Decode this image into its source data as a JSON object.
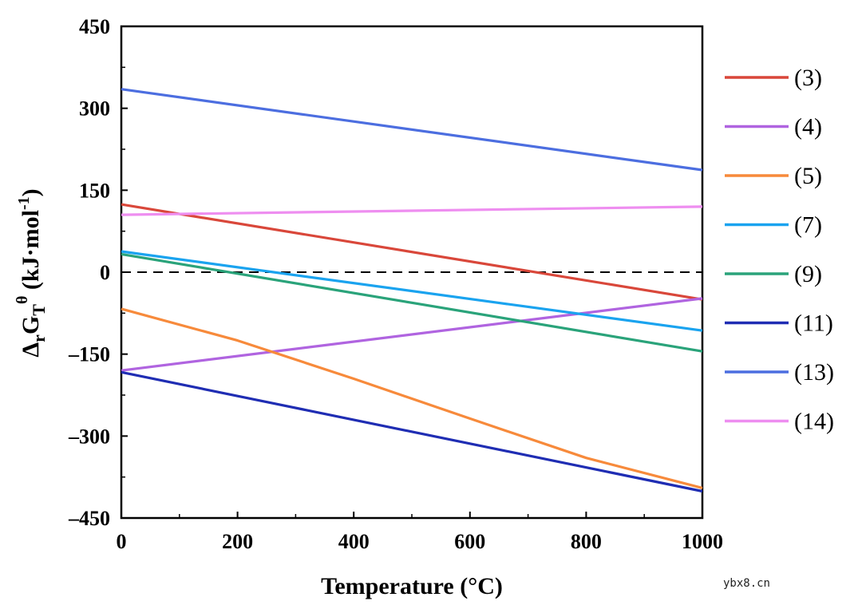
{
  "chart_data": {
    "type": "line",
    "title": "",
    "xlabel": "Temperature (°C)",
    "ylabel_parts": {
      "delta": "Δ",
      "r": "r",
      "G": "G",
      "T": "T",
      "theta": "θ",
      "units": " (kJ·mol",
      "exp": "-1",
      "close": ")"
    },
    "xlim": [
      0,
      1000
    ],
    "ylim": [
      -450,
      450
    ],
    "xticks": [
      0,
      200,
      400,
      600,
      800,
      1000
    ],
    "yticks": [
      450,
      300,
      150,
      0,
      -150,
      -300,
      -450
    ],
    "ytick_labels": [
      "450",
      "300",
      "150",
      "0",
      "–150",
      "–300",
      "–450"
    ],
    "xtick_labels": [
      "0",
      "200",
      "400",
      "600",
      "800",
      "1000"
    ],
    "reference_line": {
      "y": 0,
      "style": "dashed"
    },
    "legend_position": "right",
    "series": [
      {
        "name": "(3)",
        "color": "#d9473a",
        "x": [
          0,
          1000
        ],
        "y": [
          124,
          -50
        ]
      },
      {
        "name": "(4)",
        "color": "#b064e0",
        "x": [
          0,
          1000
        ],
        "y": [
          -180,
          -48
        ]
      },
      {
        "name": "(5)",
        "color": "#f78a3b",
        "x": [
          0,
          200,
          400,
          600,
          800,
          1000
        ],
        "y": [
          -67,
          -125,
          -195,
          -268,
          -340,
          -395
        ]
      },
      {
        "name": "(7)",
        "color": "#1aa3ef",
        "x": [
          0,
          1000
        ],
        "y": [
          38,
          -107
        ]
      },
      {
        "name": "(9)",
        "color": "#2aa37a",
        "x": [
          0,
          1000
        ],
        "y": [
          33,
          -145
        ]
      },
      {
        "name": "(11)",
        "color": "#1f2db3",
        "x": [
          0,
          1000
        ],
        "y": [
          -183,
          -401
        ]
      },
      {
        "name": "(13)",
        "color": "#4c6ee0",
        "x": [
          0,
          1000
        ],
        "y": [
          335,
          187
        ]
      },
      {
        "name": "(14)",
        "color": "#ee8ef0",
        "x": [
          0,
          1000
        ],
        "y": [
          105,
          120
        ]
      }
    ]
  },
  "watermark": "ybx8.cn"
}
